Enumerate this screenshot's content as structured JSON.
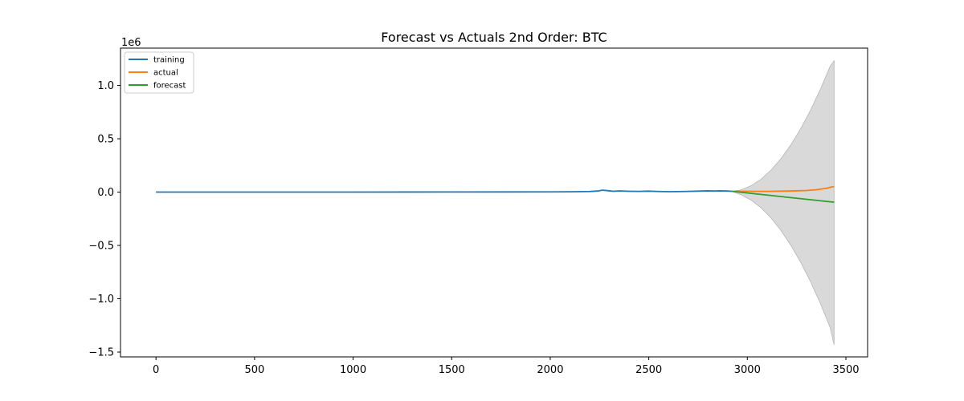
{
  "chart_data": {
    "type": "line",
    "title": "Forecast vs Actuals 2nd Order: BTC",
    "xlabel": "",
    "ylabel": "",
    "y_scale_label": "1e6",
    "xlim": [
      -180,
      3610
    ],
    "ylim": [
      -1.545,
      1.35
    ],
    "xticks": [
      0,
      500,
      1000,
      1500,
      2000,
      2500,
      3000,
      3500
    ],
    "xtick_labels": [
      "0",
      "500",
      "1000",
      "1500",
      "2000",
      "2500",
      "3000",
      "3500"
    ],
    "yticks": [
      -1.5,
      -1.0,
      -0.5,
      0.0,
      0.5,
      1.0
    ],
    "ytick_labels": [
      "−1.5",
      "−1.0",
      "−0.5",
      "0.0",
      "0.5",
      "1.0"
    ],
    "grid": false,
    "legend_position": "upper-left",
    "series": [
      {
        "name": "training",
        "color": "#1f77b4",
        "x": [
          0,
          500,
          1000,
          1500,
          2000,
          2100,
          2200,
          2240,
          2265,
          2290,
          2320,
          2350,
          2400,
          2450,
          2500,
          2550,
          2600,
          2650,
          2700,
          2750,
          2800,
          2830,
          2860,
          2900,
          2920
        ],
        "y": [
          0.0,
          0.0,
          0.0005,
          0.001,
          0.002,
          0.003,
          0.006,
          0.01,
          0.018,
          0.014,
          0.008,
          0.011,
          0.008,
          0.007,
          0.009,
          0.006,
          0.004,
          0.005,
          0.007,
          0.009,
          0.012,
          0.01,
          0.012,
          0.01,
          0.008
        ]
      },
      {
        "name": "actual",
        "color": "#ff7f0e",
        "x": [
          2920,
          3000,
          3100,
          3200,
          3300,
          3350,
          3380,
          3400,
          3420,
          3440
        ],
        "y": [
          0.008,
          0.008,
          0.007,
          0.01,
          0.015,
          0.022,
          0.03,
          0.035,
          0.045,
          0.052
        ]
      },
      {
        "name": "forecast",
        "color": "#2ca02c",
        "x": [
          2920,
          3440
        ],
        "y": [
          0.008,
          -0.095
        ]
      }
    ],
    "confidence_band": {
      "color": "#d9d9d9",
      "x": [
        2920,
        2970,
        3020,
        3070,
        3120,
        3170,
        3220,
        3270,
        3320,
        3370,
        3420,
        3440
      ],
      "upper": [
        0.008,
        0.022,
        0.061,
        0.122,
        0.206,
        0.312,
        0.441,
        0.592,
        0.766,
        0.962,
        1.18,
        1.232
      ],
      "lower": [
        0.008,
        -0.026,
        -0.076,
        -0.148,
        -0.242,
        -0.358,
        -0.496,
        -0.656,
        -0.838,
        -1.042,
        -1.268,
        -1.432
      ]
    }
  }
}
